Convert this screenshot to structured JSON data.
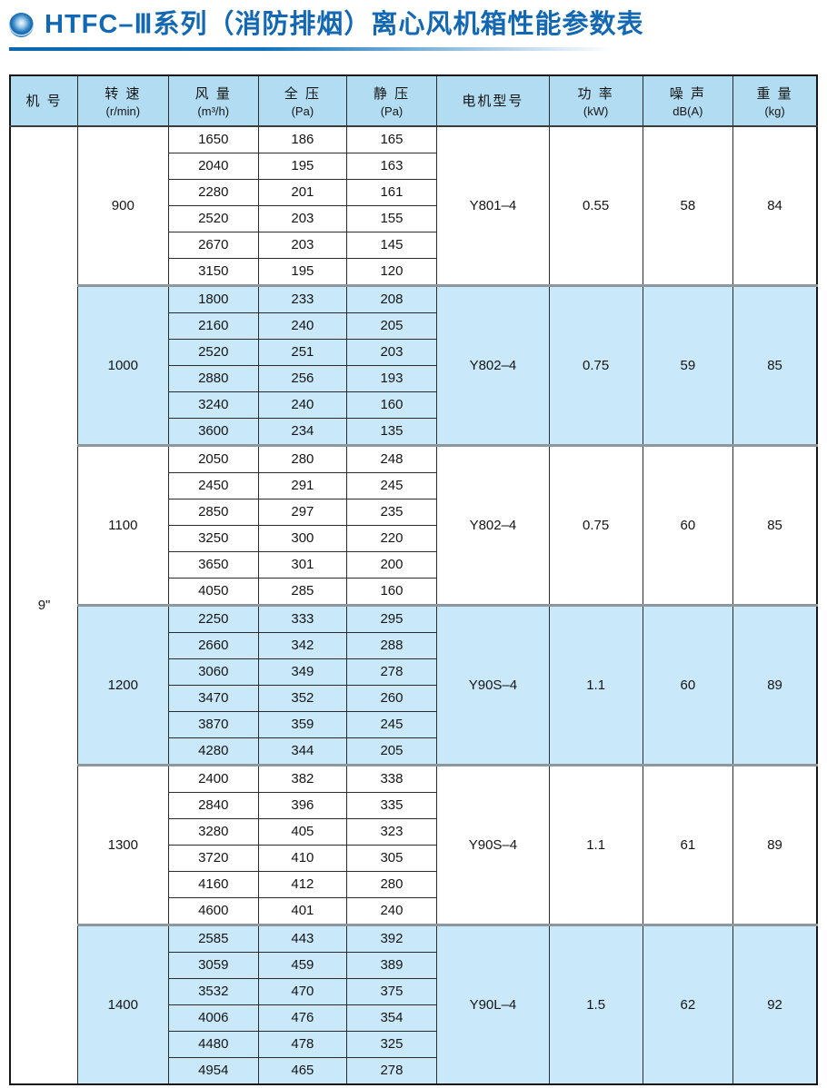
{
  "header": {
    "title": "HTFC–Ⅲ系列（消防排烟）离心风机箱性能参数表"
  },
  "colors": {
    "accent": "#1268b3",
    "header_bg": "#b2dcf1",
    "stripe_bg": "#c9e9fa"
  },
  "table": {
    "columns": [
      {
        "key": "machine",
        "label": "机 号",
        "sub": ""
      },
      {
        "key": "speed",
        "label": "转 速",
        "sub": "(r/min)"
      },
      {
        "key": "airflow",
        "label": "风 量",
        "sub": "(m³/h)"
      },
      {
        "key": "total-pressure",
        "label": "全 压",
        "sub": "(Pa)"
      },
      {
        "key": "static-pressure",
        "label": "静 压",
        "sub": "(Pa)"
      },
      {
        "key": "motor",
        "label": "电机型号",
        "sub": ""
      },
      {
        "key": "power",
        "label": "功 率",
        "sub": "(kW)"
      },
      {
        "key": "noise",
        "label": "噪 声",
        "sub": "dB(A)"
      },
      {
        "key": "weight",
        "label": "重 量",
        "sub": "(kg)"
      }
    ],
    "machine_size": "9\"",
    "blocks": [
      {
        "speed": "900",
        "motor": "Y801–4",
        "power": "0.55",
        "noise": "58",
        "weight": "84",
        "highlighted": false,
        "rows": [
          [
            "1650",
            "186",
            "165"
          ],
          [
            "2040",
            "195",
            "163"
          ],
          [
            "2280",
            "201",
            "161"
          ],
          [
            "2520",
            "203",
            "155"
          ],
          [
            "2670",
            "203",
            "145"
          ],
          [
            "3150",
            "195",
            "120"
          ]
        ]
      },
      {
        "speed": "1000",
        "motor": "Y802–4",
        "power": "0.75",
        "noise": "59",
        "weight": "85",
        "highlighted": true,
        "rows": [
          [
            "1800",
            "233",
            "208"
          ],
          [
            "2160",
            "240",
            "205"
          ],
          [
            "2520",
            "251",
            "203"
          ],
          [
            "2880",
            "256",
            "193"
          ],
          [
            "3240",
            "240",
            "160"
          ],
          [
            "3600",
            "234",
            "135"
          ]
        ]
      },
      {
        "speed": "1100",
        "motor": "Y802–4",
        "power": "0.75",
        "noise": "60",
        "weight": "85",
        "highlighted": false,
        "rows": [
          [
            "2050",
            "280",
            "248"
          ],
          [
            "2450",
            "291",
            "245"
          ],
          [
            "2850",
            "297",
            "235"
          ],
          [
            "3250",
            "300",
            "220"
          ],
          [
            "3650",
            "301",
            "200"
          ],
          [
            "4050",
            "285",
            "160"
          ]
        ]
      },
      {
        "speed": "1200",
        "motor": "Y90S–4",
        "power": "1.1",
        "noise": "60",
        "weight": "89",
        "highlighted": true,
        "rows": [
          [
            "2250",
            "333",
            "295"
          ],
          [
            "2660",
            "342",
            "288"
          ],
          [
            "3060",
            "349",
            "278"
          ],
          [
            "3470",
            "352",
            "260"
          ],
          [
            "3870",
            "359",
            "245"
          ],
          [
            "4280",
            "344",
            "205"
          ]
        ]
      },
      {
        "speed": "1300",
        "motor": "Y90S–4",
        "power": "1.1",
        "noise": "61",
        "weight": "89",
        "highlighted": false,
        "rows": [
          [
            "2400",
            "382",
            "338"
          ],
          [
            "2840",
            "396",
            "335"
          ],
          [
            "3280",
            "405",
            "323"
          ],
          [
            "3720",
            "410",
            "305"
          ],
          [
            "4160",
            "412",
            "280"
          ],
          [
            "4600",
            "401",
            "240"
          ]
        ]
      },
      {
        "speed": "1400",
        "motor": "Y90L–4",
        "power": "1.5",
        "noise": "62",
        "weight": "92",
        "highlighted": true,
        "rows": [
          [
            "2585",
            "443",
            "392"
          ],
          [
            "3059",
            "459",
            "389"
          ],
          [
            "3532",
            "470",
            "375"
          ],
          [
            "4006",
            "476",
            "354"
          ],
          [
            "4480",
            "478",
            "325"
          ],
          [
            "4954",
            "465",
            "278"
          ]
        ]
      }
    ]
  }
}
